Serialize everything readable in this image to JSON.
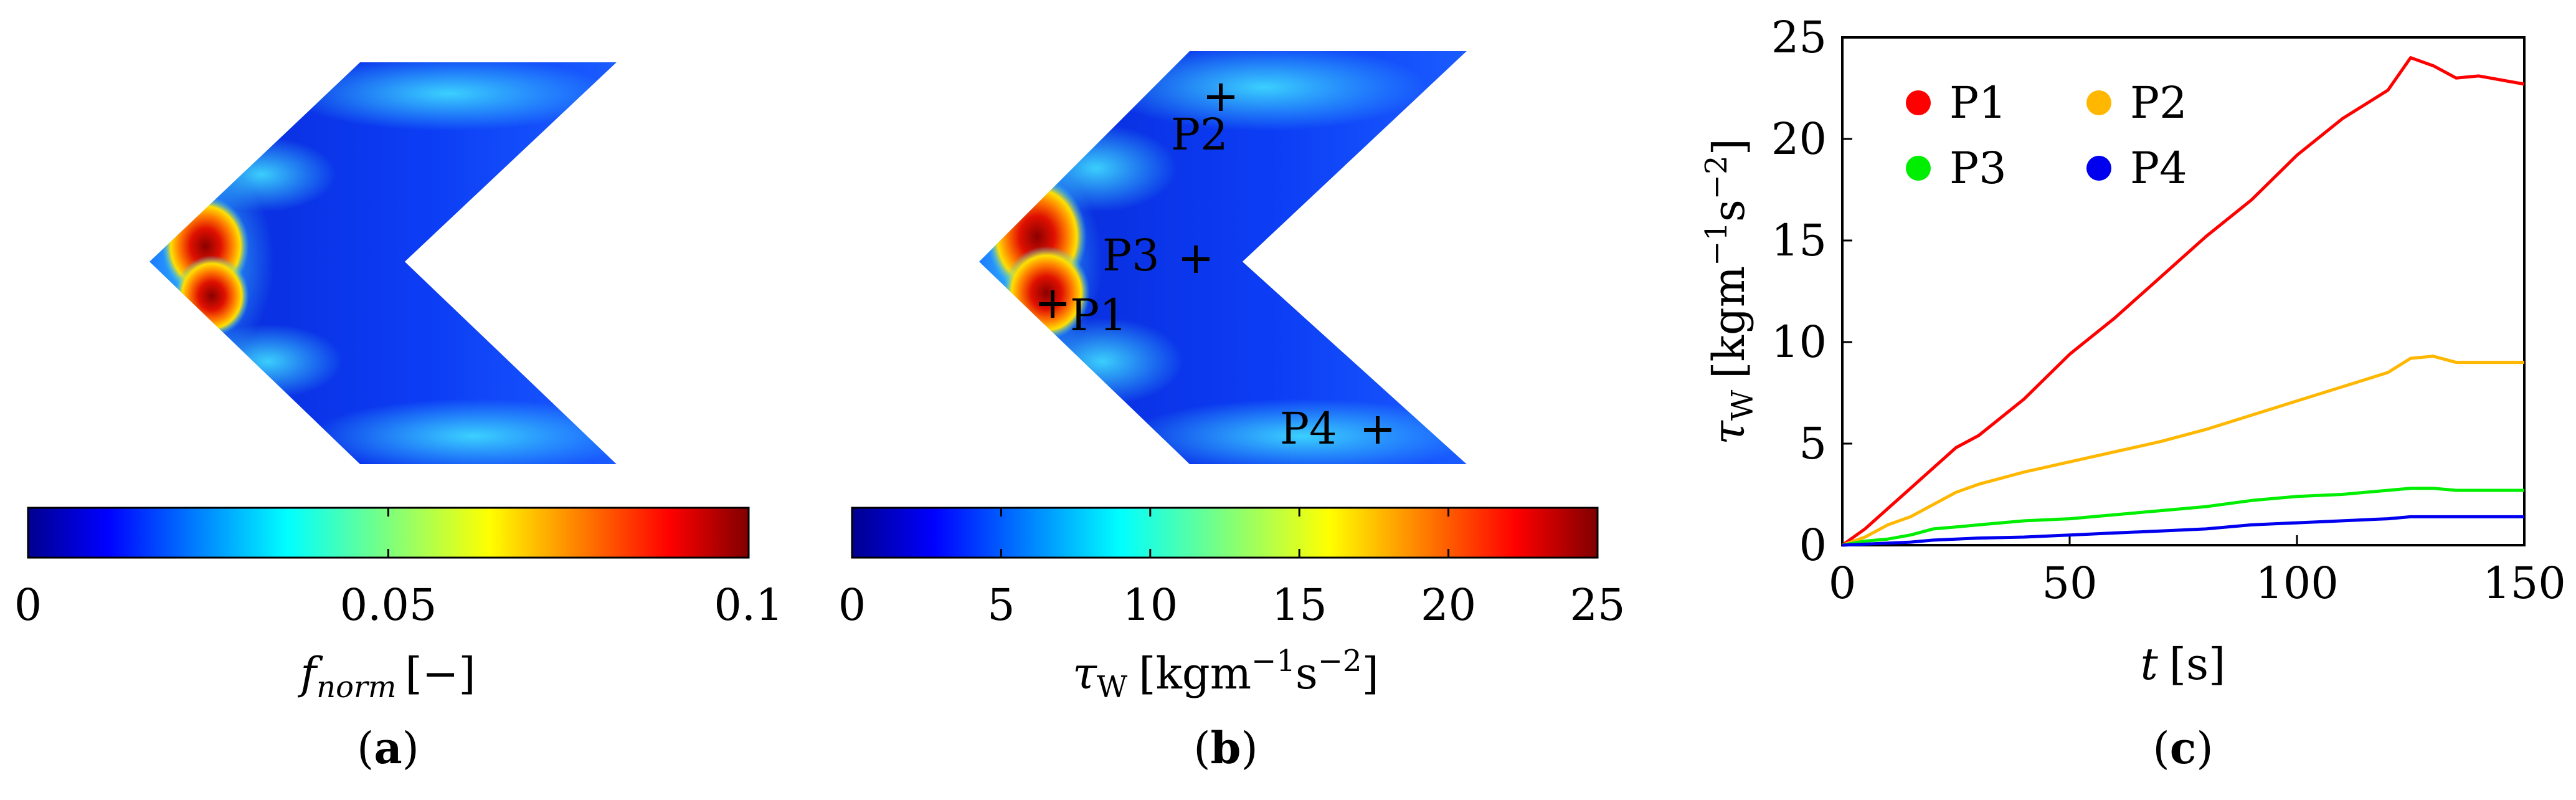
{
  "panels": {
    "a": {
      "label": "a",
      "colorbar": {
        "ticks": [
          "0",
          "0.05",
          "0.1"
        ],
        "tick_values": [
          0,
          0.05,
          0.1
        ],
        "range": [
          0,
          0.1
        ],
        "label_main": "f",
        "label_sub": "norm",
        "label_unit": "[−]",
        "colormap": "jet"
      }
    },
    "b": {
      "label": "b",
      "colorbar": {
        "ticks": [
          "0",
          "5",
          "10",
          "15",
          "20",
          "25"
        ],
        "tick_values": [
          0,
          5,
          10,
          15,
          20,
          25
        ],
        "range": [
          0,
          25
        ],
        "label_symbol": "τ",
        "label_sub": "W",
        "label_unit_open": "[kgm",
        "label_exp1": "−1",
        "label_mid": "s",
        "label_exp2": "−2",
        "label_close": "]",
        "colormap": "jet"
      },
      "points": [
        {
          "name": "P1"
        },
        {
          "name": "P2"
        },
        {
          "name": "P3"
        },
        {
          "name": "P4"
        }
      ]
    },
    "c": {
      "label": "c"
    }
  },
  "colors": {
    "P1": "#ff0000",
    "P2": "#ffb700",
    "P3": "#00ee00",
    "P4": "#0000ee"
  },
  "chart_data": {
    "type": "line",
    "xlabel_var": "t",
    "xlabel_unit": "[s]",
    "ylabel_symbol": "τ",
    "ylabel_sub": "W",
    "ylabel_unit_open": "[kgm",
    "ylabel_exp1": "−1",
    "ylabel_mid": "s",
    "ylabel_exp2": "−2",
    "ylabel_close": "]",
    "xlim": [
      0,
      150
    ],
    "ylim": [
      0,
      25
    ],
    "xticks": [
      0,
      50,
      100,
      150
    ],
    "yticks": [
      0,
      5,
      10,
      15,
      20,
      25
    ],
    "grid": false,
    "legend_placement": "top-left",
    "series": [
      {
        "name": "P1",
        "x": [
          0,
          5,
          10,
          15,
          20,
          25,
          30,
          40,
          50,
          60,
          70,
          80,
          90,
          100,
          110,
          120,
          125,
          130,
          135,
          140,
          145,
          150
        ],
        "y": [
          0,
          0.8,
          1.8,
          2.8,
          3.8,
          4.8,
          5.4,
          7.2,
          9.4,
          11.2,
          13.2,
          15.2,
          17.0,
          19.2,
          21.0,
          22.4,
          24.0,
          23.6,
          23.0,
          23.1,
          22.9,
          22.7
        ]
      },
      {
        "name": "P2",
        "x": [
          0,
          5,
          10,
          15,
          20,
          25,
          30,
          40,
          50,
          60,
          70,
          80,
          90,
          100,
          110,
          120,
          125,
          130,
          135,
          140,
          145,
          150
        ],
        "y": [
          0,
          0.4,
          1.0,
          1.4,
          2.0,
          2.6,
          3.0,
          3.6,
          4.1,
          4.6,
          5.1,
          5.7,
          6.4,
          7.1,
          7.8,
          8.5,
          9.2,
          9.3,
          9.0,
          9.0,
          9.0,
          9.0
        ]
      },
      {
        "name": "P3",
        "x": [
          0,
          5,
          10,
          15,
          20,
          25,
          30,
          40,
          50,
          60,
          70,
          80,
          90,
          100,
          110,
          120,
          125,
          130,
          135,
          140,
          145,
          150
        ],
        "y": [
          0,
          0.2,
          0.3,
          0.5,
          0.8,
          0.9,
          1.0,
          1.2,
          1.3,
          1.5,
          1.7,
          1.9,
          2.2,
          2.4,
          2.5,
          2.7,
          2.8,
          2.8,
          2.7,
          2.7,
          2.7,
          2.7
        ]
      },
      {
        "name": "P4",
        "x": [
          0,
          5,
          10,
          15,
          20,
          25,
          30,
          40,
          50,
          60,
          70,
          80,
          90,
          100,
          110,
          120,
          125,
          130,
          135,
          140,
          145,
          150
        ],
        "y": [
          0,
          0.05,
          0.1,
          0.15,
          0.25,
          0.3,
          0.35,
          0.4,
          0.5,
          0.6,
          0.7,
          0.8,
          1.0,
          1.1,
          1.2,
          1.3,
          1.4,
          1.4,
          1.4,
          1.4,
          1.4,
          1.4
        ]
      }
    ]
  }
}
